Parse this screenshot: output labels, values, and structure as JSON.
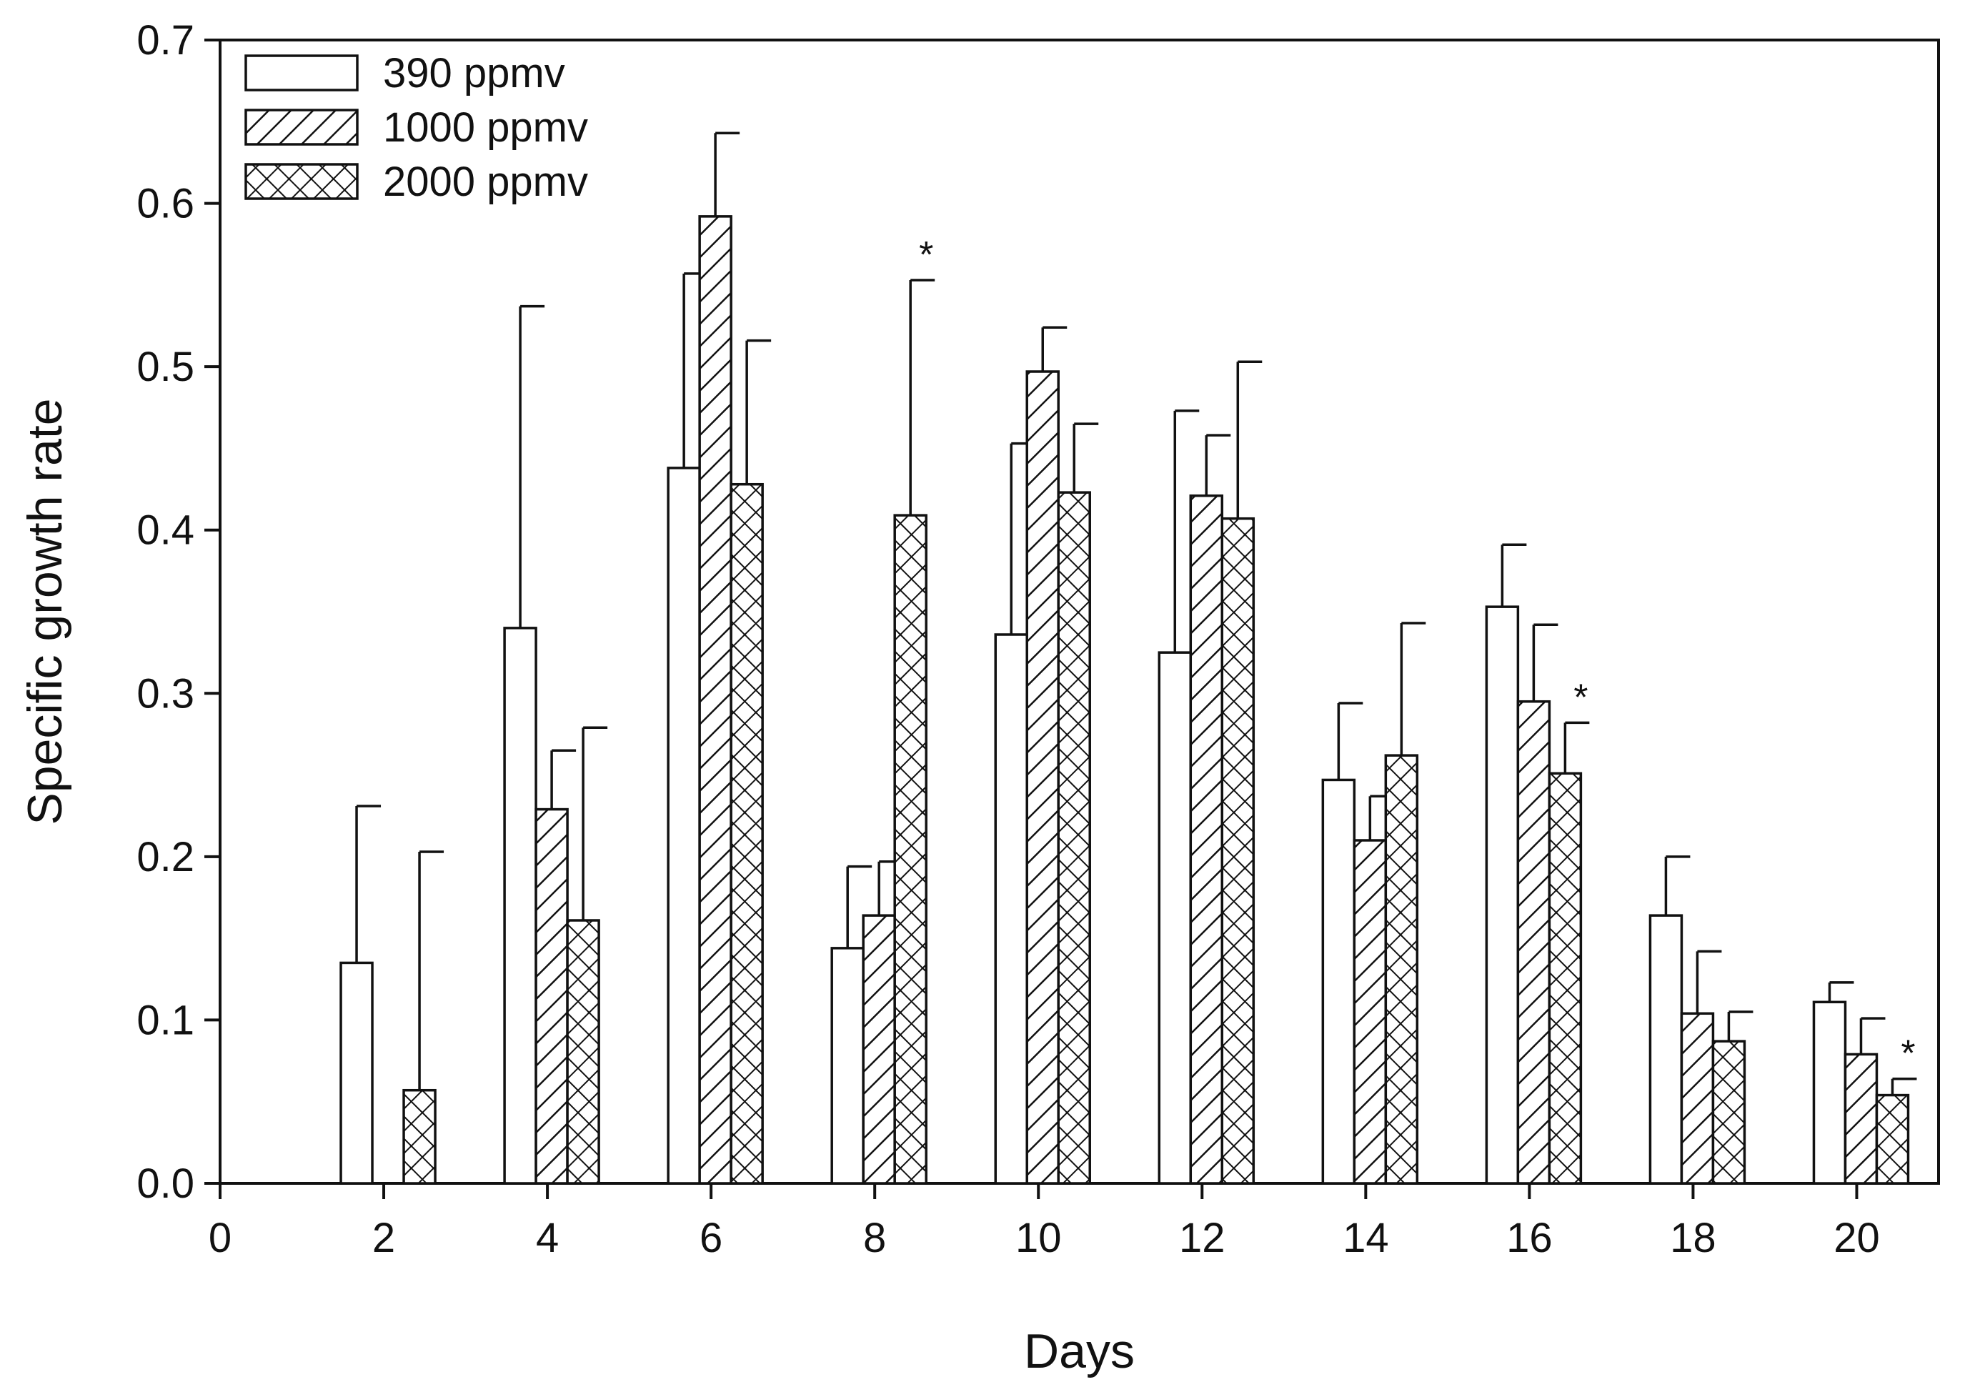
{
  "chart_data": {
    "type": "bar",
    "title": "",
    "xlabel": "Days",
    "ylabel": "Specific growth rate",
    "xlim": [
      0,
      21
    ],
    "ylim": [
      0,
      0.7
    ],
    "x_ticks": [
      0,
      2,
      4,
      6,
      8,
      10,
      12,
      14,
      16,
      18,
      20
    ],
    "y_ticks": [
      0.0,
      0.1,
      0.2,
      0.3,
      0.4,
      0.5,
      0.6,
      0.7
    ],
    "y_tick_labels": [
      "0.0",
      "0.1",
      "0.2",
      "0.3",
      "0.4",
      "0.5",
      "0.6",
      "0.7"
    ],
    "categories": [
      2,
      4,
      6,
      8,
      10,
      12,
      14,
      16,
      18,
      20
    ],
    "legend_position": "top-left",
    "series": [
      {
        "name": "390 ppmv",
        "pattern": "open",
        "values": [
          0.135,
          0.34,
          0.438,
          0.144,
          0.336,
          0.325,
          0.247,
          0.353,
          0.164,
          0.111
        ],
        "errors": [
          0.096,
          0.197,
          0.119,
          0.05,
          0.117,
          0.148,
          0.047,
          0.038,
          0.036,
          0.012
        ]
      },
      {
        "name": "1000 ppmv",
        "pattern": "hatched",
        "values": [
          null,
          0.229,
          0.592,
          0.164,
          0.497,
          0.421,
          0.21,
          0.295,
          0.104,
          0.079
        ],
        "errors": [
          null,
          0.036,
          0.051,
          0.033,
          0.027,
          0.037,
          0.027,
          0.047,
          0.038,
          0.022
        ]
      },
      {
        "name": "2000 ppmv",
        "pattern": "crosshatched",
        "values": [
          0.057,
          0.161,
          0.428,
          0.409,
          0.423,
          0.407,
          0.262,
          0.251,
          0.087,
          0.054
        ],
        "errors": [
          0.146,
          0.118,
          0.088,
          0.144,
          0.042,
          0.096,
          0.081,
          0.031,
          0.018,
          0.01
        ]
      }
    ],
    "significance_markers": [
      {
        "day": 8,
        "series": "2000 ppmv",
        "label": "*"
      },
      {
        "day": 16,
        "series": "2000 ppmv",
        "label": "*"
      },
      {
        "day": 20,
        "series": "2000 ppmv",
        "label": "*"
      }
    ]
  }
}
